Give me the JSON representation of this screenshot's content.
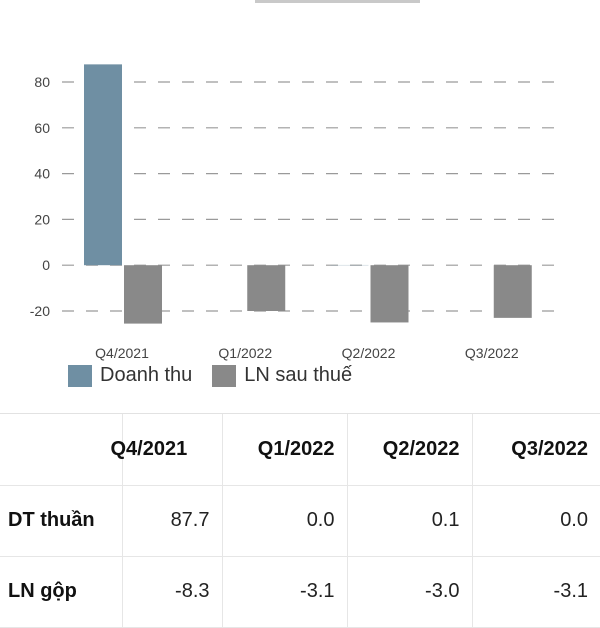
{
  "chart_data": {
    "type": "bar",
    "categories": [
      "Q4/2021",
      "Q1/2022",
      "Q2/2022",
      "Q3/2022"
    ],
    "series": [
      {
        "name": "Doanh thu",
        "color": "#6f8fa3",
        "values": [
          87.7,
          0.0,
          0.1,
          0.0
        ]
      },
      {
        "name": "LN sau thuế",
        "color": "#898989",
        "values": [
          -25.5,
          -20.0,
          -25.0,
          -23.0
        ]
      }
    ],
    "yticks": [
      80,
      60,
      40,
      20,
      0,
      -20
    ],
    "ylim": [
      -27,
      92
    ],
    "grid": true,
    "legend_position": "bottom-left"
  },
  "table": {
    "headers": [
      "",
      "Q4/2021",
      "Q1/2022",
      "Q2/2022",
      "Q3/2022"
    ],
    "rows": [
      {
        "label": "DT thuần",
        "values": [
          "87.7",
          "0.0",
          "0.1",
          "0.0"
        ]
      },
      {
        "label": "LN gộp",
        "values": [
          "-8.3",
          "-3.1",
          "-3.0",
          "-3.1"
        ]
      }
    ]
  }
}
